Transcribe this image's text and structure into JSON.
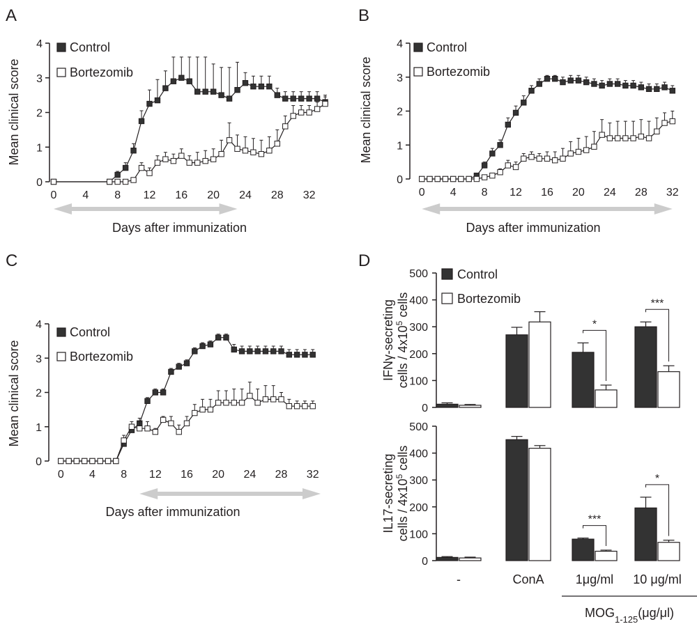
{
  "figure": {
    "colors": {
      "control": "#333333",
      "bortezomib": "#ffffff",
      "stroke": "#231f20",
      "arrow": "#cccccc"
    }
  },
  "chart_data": [
    {
      "panel": "A",
      "type": "line",
      "ylabel": "Mean clinical score",
      "xlabel": "Days after immunization",
      "xlim": [
        0,
        35
      ],
      "ylim": [
        0,
        4
      ],
      "xticks": [
        "0",
        "4",
        "8",
        "12",
        "16",
        "20",
        "24",
        "28",
        "32"
      ],
      "yticks": [
        "0",
        "1",
        "2",
        "3",
        "4"
      ],
      "arrow_days": [
        0,
        23
      ],
      "series": [
        {
          "name": "Control",
          "x": [
            0,
            7,
            8,
            9,
            10,
            11,
            12,
            13,
            14,
            15,
            16,
            17,
            18,
            19,
            20,
            21,
            22,
            23,
            24,
            25,
            26,
            27,
            28,
            29,
            30,
            31,
            32,
            33,
            34
          ],
          "y": [
            0,
            0,
            0.2,
            0.4,
            0.9,
            1.75,
            2.25,
            2.35,
            2.7,
            2.9,
            3.0,
            2.9,
            2.6,
            2.6,
            2.6,
            2.5,
            2.4,
            2.65,
            2.85,
            2.75,
            2.75,
            2.75,
            2.5,
            2.4,
            2.4,
            2.4,
            2.4,
            2.4,
            2.3
          ],
          "err": [
            0,
            0,
            0.1,
            0.15,
            0.2,
            0.3,
            0.4,
            0.6,
            0.5,
            0.7,
            0.6,
            0.7,
            1.0,
            1.0,
            0.8,
            0.8,
            0.9,
            0.8,
            0.3,
            0.3,
            0.3,
            0.3,
            0.2,
            0.2,
            0.2,
            0.2,
            0.2,
            0.2,
            0.2
          ]
        },
        {
          "name": "Bortezomib",
          "x": [
            0,
            7,
            8,
            9,
            10,
            11,
            12,
            13,
            14,
            15,
            16,
            17,
            18,
            19,
            20,
            21,
            22,
            23,
            24,
            25,
            26,
            27,
            28,
            29,
            30,
            31,
            32,
            33,
            34
          ],
          "y": [
            0,
            0,
            0,
            0,
            0.05,
            0.4,
            0.25,
            0.55,
            0.65,
            0.6,
            0.75,
            0.55,
            0.55,
            0.6,
            0.65,
            0.8,
            1.2,
            0.95,
            0.9,
            0.85,
            0.8,
            0.9,
            1.1,
            1.6,
            1.9,
            2.0,
            2.0,
            2.1,
            2.25
          ],
          "err": [
            0,
            0,
            0,
            0,
            0.05,
            0.15,
            0.15,
            0.2,
            0.2,
            0.2,
            0.2,
            0.2,
            0.3,
            0.3,
            0.3,
            0.4,
            0.5,
            0.4,
            0.4,
            0.4,
            0.4,
            0.4,
            0.4,
            0.3,
            0.3,
            0.2,
            0.2,
            0.2,
            0.2
          ]
        }
      ]
    },
    {
      "panel": "B",
      "type": "line",
      "ylabel": "Mean clinical score",
      "xlabel": "Days after immunization",
      "xlim": [
        -1,
        33
      ],
      "ylim": [
        0,
        4
      ],
      "xticks": [
        "0",
        "4",
        "8",
        "12",
        "16",
        "20",
        "24",
        "28",
        "32"
      ],
      "yticks": [
        "0",
        "1",
        "2",
        "3",
        "4"
      ],
      "arrow_days": [
        0,
        32
      ],
      "series": [
        {
          "name": "Control",
          "x": [
            0,
            1,
            2,
            3,
            4,
            5,
            6,
            7,
            8,
            9,
            10,
            11,
            12,
            13,
            14,
            15,
            16,
            17,
            18,
            19,
            20,
            21,
            22,
            23,
            24,
            25,
            26,
            27,
            28,
            29,
            30,
            31,
            32
          ],
          "y": [
            0,
            0,
            0,
            0,
            0,
            0,
            0,
            0.1,
            0.4,
            0.75,
            1.0,
            1.6,
            1.95,
            2.25,
            2.6,
            2.8,
            2.95,
            2.95,
            2.85,
            2.9,
            2.9,
            2.85,
            2.8,
            2.75,
            2.8,
            2.8,
            2.75,
            2.75,
            2.7,
            2.65,
            2.65,
            2.7,
            2.6
          ],
          "err": [
            0,
            0,
            0,
            0,
            0,
            0,
            0,
            0.05,
            0.1,
            0.15,
            0.15,
            0.2,
            0.2,
            0.2,
            0.15,
            0.15,
            0.1,
            0.1,
            0.15,
            0.15,
            0.15,
            0.15,
            0.15,
            0.15,
            0.15,
            0.15,
            0.15,
            0.15,
            0.15,
            0.15,
            0.15,
            0.15,
            0.15
          ]
        },
        {
          "name": "Bortezomib",
          "x": [
            0,
            1,
            2,
            3,
            4,
            5,
            6,
            7,
            8,
            9,
            10,
            11,
            12,
            13,
            14,
            15,
            16,
            17,
            18,
            19,
            20,
            21,
            22,
            23,
            24,
            25,
            26,
            27,
            28,
            29,
            30,
            31,
            32
          ],
          "y": [
            0,
            0,
            0,
            0,
            0,
            0,
            0,
            0,
            0.05,
            0.1,
            0.2,
            0.4,
            0.35,
            0.6,
            0.65,
            0.6,
            0.6,
            0.55,
            0.6,
            0.75,
            0.8,
            0.85,
            0.95,
            1.3,
            1.2,
            1.2,
            1.2,
            1.2,
            1.25,
            1.2,
            1.4,
            1.65,
            1.7
          ],
          "err": [
            0,
            0,
            0,
            0,
            0,
            0,
            0,
            0,
            0.05,
            0.05,
            0.1,
            0.15,
            0.15,
            0.15,
            0.15,
            0.15,
            0.2,
            0.25,
            0.3,
            0.35,
            0.4,
            0.4,
            0.45,
            0.45,
            0.45,
            0.5,
            0.5,
            0.5,
            0.5,
            0.5,
            0.4,
            0.3,
            0.3
          ]
        }
      ]
    },
    {
      "panel": "C",
      "type": "line",
      "ylabel": "Mean clinical score",
      "xlabel": "Days after immunization",
      "xlim": [
        -1,
        33
      ],
      "ylim": [
        0,
        4
      ],
      "xticks": [
        "0",
        "4",
        "8",
        "12",
        "16",
        "20",
        "24",
        "28",
        "32"
      ],
      "yticks": [
        "0",
        "1",
        "2",
        "3",
        "4"
      ],
      "arrow_days": [
        10,
        33
      ],
      "series": [
        {
          "name": "Control",
          "x": [
            0,
            1,
            2,
            3,
            4,
            5,
            6,
            7,
            8,
            9,
            10,
            11,
            12,
            13,
            14,
            15,
            16,
            17,
            18,
            19,
            20,
            21,
            22,
            23,
            24,
            25,
            26,
            27,
            28,
            29,
            30,
            31,
            32
          ],
          "y": [
            0,
            0,
            0,
            0,
            0,
            0,
            0,
            0,
            0.5,
            0.9,
            1.1,
            1.75,
            2.0,
            2.0,
            2.6,
            2.75,
            2.85,
            3.2,
            3.35,
            3.4,
            3.6,
            3.6,
            3.25,
            3.2,
            3.2,
            3.2,
            3.2,
            3.2,
            3.2,
            3.1,
            3.1,
            3.1,
            3.1
          ],
          "err": [
            0,
            0,
            0,
            0,
            0,
            0,
            0,
            0,
            0.15,
            0.15,
            0.15,
            0.1,
            0.1,
            0.1,
            0.1,
            0.1,
            0.1,
            0.1,
            0.1,
            0.1,
            0.1,
            0.1,
            0.15,
            0.15,
            0.15,
            0.15,
            0.15,
            0.15,
            0.15,
            0.15,
            0.15,
            0.15,
            0.15
          ]
        },
        {
          "name": "Bortezomib",
          "x": [
            0,
            1,
            2,
            3,
            4,
            5,
            6,
            7,
            8,
            9,
            10,
            11,
            12,
            13,
            14,
            15,
            16,
            17,
            18,
            19,
            20,
            21,
            22,
            23,
            24,
            25,
            26,
            27,
            28,
            29,
            30,
            31,
            32
          ],
          "y": [
            0,
            0,
            0,
            0,
            0,
            0,
            0,
            0,
            0.6,
            1.0,
            0.95,
            0.95,
            0.85,
            1.2,
            1.1,
            0.85,
            1.1,
            1.4,
            1.5,
            1.5,
            1.7,
            1.7,
            1.7,
            1.7,
            1.9,
            1.7,
            1.8,
            1.8,
            1.8,
            1.6,
            1.6,
            1.6,
            1.6
          ],
          "err": [
            0,
            0,
            0,
            0,
            0,
            0,
            0,
            0,
            0.15,
            0.15,
            0.2,
            0.2,
            0.1,
            0.1,
            0.2,
            0.2,
            0.2,
            0.25,
            0.3,
            0.3,
            0.35,
            0.35,
            0.4,
            0.4,
            0.4,
            0.4,
            0.4,
            0.4,
            0.2,
            0.2,
            0.15,
            0.15,
            0.15
          ]
        }
      ]
    },
    {
      "panel": "D",
      "type": "bar",
      "categories": [
        "-",
        "ConA",
        "1μg/ml",
        "10 μg/ml"
      ],
      "group_label": "MOG1-125(μg/μl)",
      "group_label_main": "MOG",
      "group_label_sub": "1-125",
      "group_label_tail": "(μg/μl)",
      "subplots": [
        {
          "id": "ifng",
          "ylabel_lines": [
            "IFNγ-secreting",
            "cells / 4x10",
            "5",
            " cells"
          ],
          "ylim": [
            0,
            500
          ],
          "yticks": [
            "0",
            "100",
            "200",
            "300",
            "400",
            "500"
          ],
          "series": [
            {
              "name": "Control",
              "values": [
                12,
                270,
                205,
                300
              ],
              "err": [
                5,
                28,
                35,
                18
              ]
            },
            {
              "name": "Bortezomib",
              "values": [
                8,
                318,
                65,
                133
              ],
              "err": [
                3,
                38,
                18,
                22
              ]
            }
          ],
          "significance": [
            {
              "category": "1μg/ml",
              "label": "*"
            },
            {
              "category": "10 μg/ml",
              "label": "***"
            }
          ]
        },
        {
          "id": "il17",
          "ylabel_lines": [
            "IL17-secreting",
            "cells / 4x10",
            "5",
            " cells"
          ],
          "ylim": [
            0,
            500
          ],
          "yticks": [
            "0",
            "100",
            "200",
            "300",
            "400",
            "500"
          ],
          "series": [
            {
              "name": "Control",
              "values": [
                12,
                450,
                80,
                196
              ],
              "err": [
                3,
                12,
                4,
                40
              ]
            },
            {
              "name": "Bortezomib",
              "values": [
                10,
                418,
                35,
                68
              ],
              "err": [
                3,
                10,
                4,
                8
              ]
            }
          ],
          "significance": [
            {
              "category": "1μg/ml",
              "label": "***"
            },
            {
              "category": "10 μg/ml",
              "label": "*"
            }
          ]
        }
      ]
    }
  ]
}
